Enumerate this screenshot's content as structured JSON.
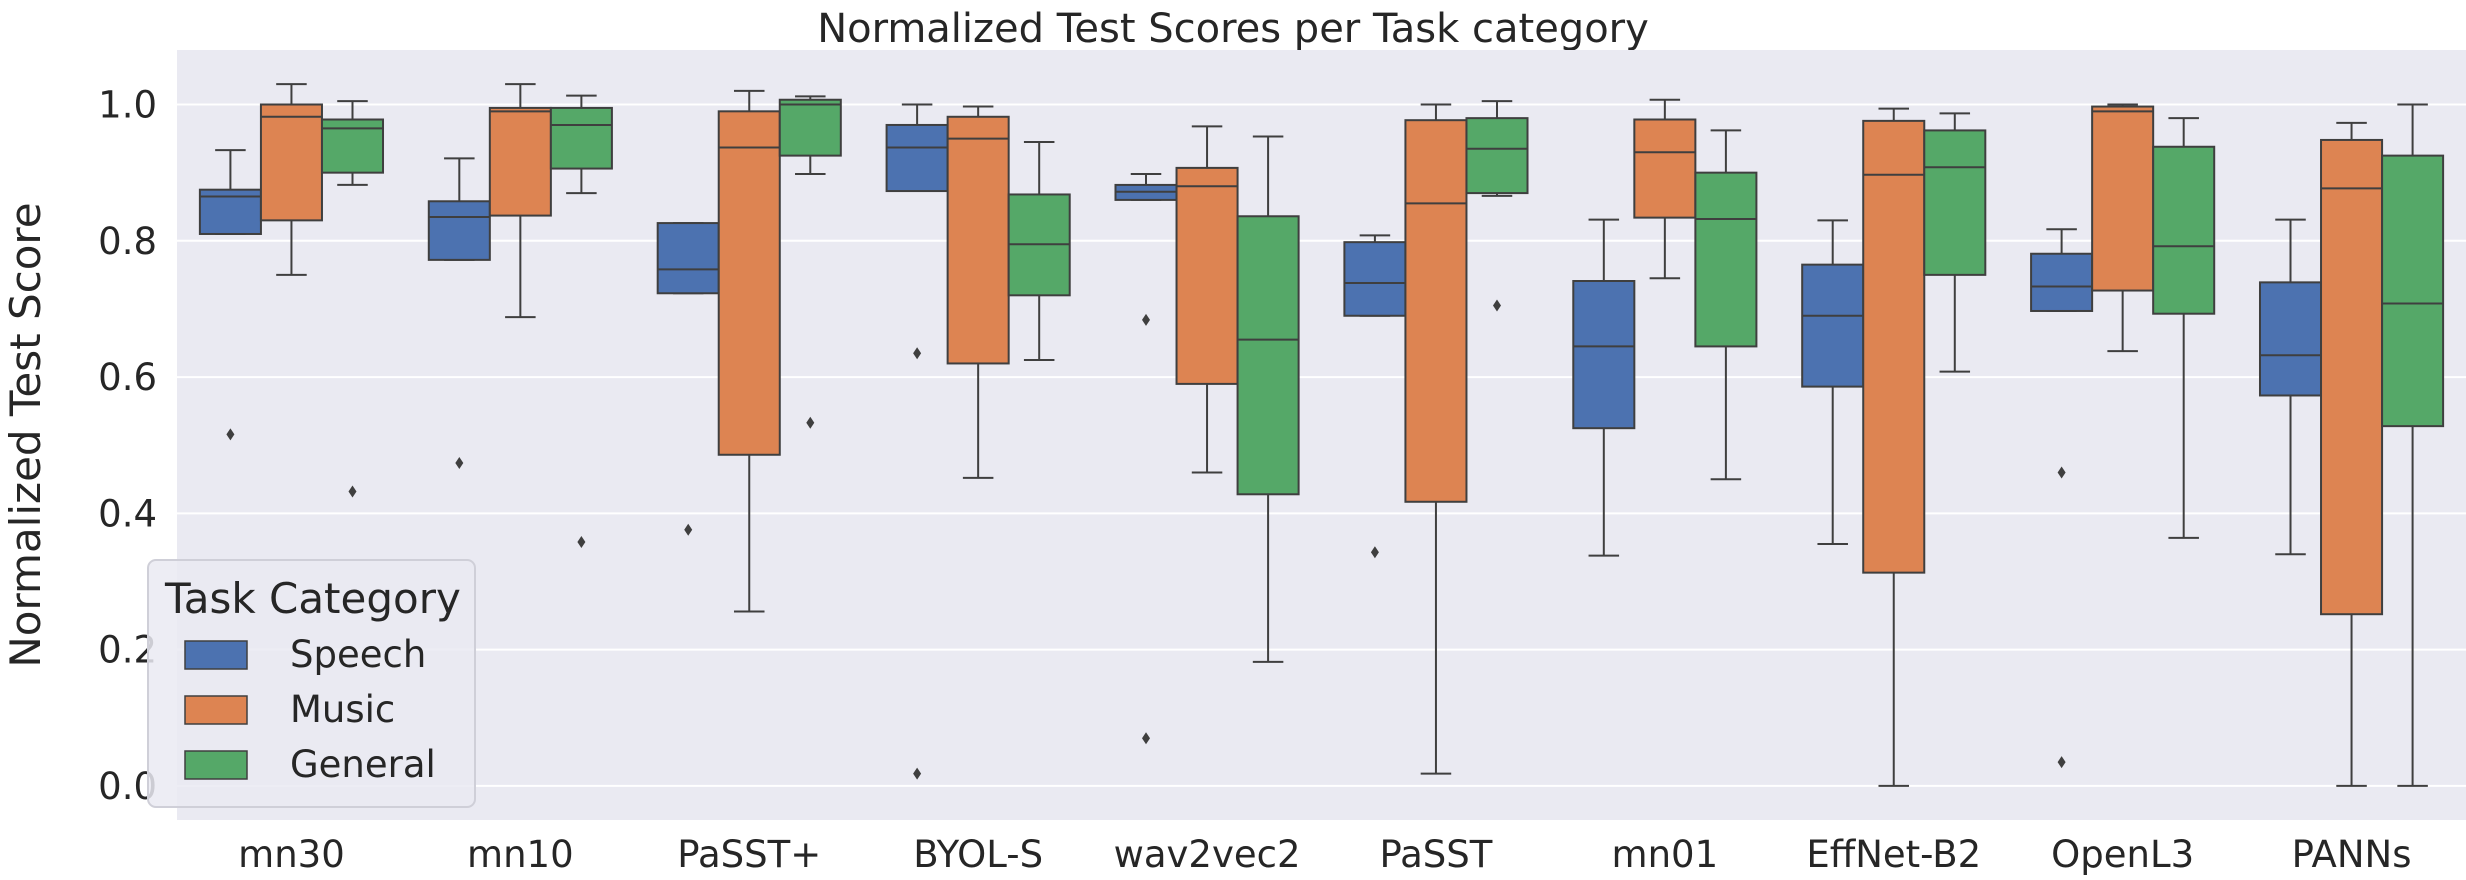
{
  "chart_data": {
    "type": "box",
    "title": "Normalized Test Scores per Task category",
    "xlabel": "",
    "ylabel": "Normalized Test Score",
    "ylim": [
      -0.05,
      1.08
    ],
    "yticks": [
      "0.0",
      "0.2",
      "0.4",
      "0.6",
      "0.8",
      "1.0"
    ],
    "ytick_values": [
      0.0,
      0.2,
      0.4,
      0.6,
      0.8,
      1.0
    ],
    "grid": true,
    "categories": [
      "mn30",
      "mn10",
      "PaSST+",
      "BYOL-S",
      "wav2vec2",
      "PaSST",
      "mn01",
      "EffNet-B2",
      "OpenL3",
      "PANNs"
    ],
    "legend": {
      "title": "Task Category",
      "location": "lower-left",
      "entries": [
        "Speech",
        "Music",
        "General"
      ]
    },
    "colors": {
      "Speech": "#4c72b0",
      "Music": "#dd8452",
      "General": "#55a868",
      "background": "#eaeaf2",
      "grid": "#ffffff",
      "edge": "#3f3f3f"
    },
    "series": [
      {
        "name": "Speech",
        "boxes": [
          {
            "q1": 0.81,
            "median": 0.865,
            "q3": 0.875,
            "whislo": 0.81,
            "whishi": 0.933,
            "fliers": [
              0.516
            ]
          },
          {
            "q1": 0.772,
            "median": 0.835,
            "q3": 0.858,
            "whislo": 0.772,
            "whishi": 0.921,
            "fliers": [
              0.474
            ]
          },
          {
            "q1": 0.723,
            "median": 0.758,
            "q3": 0.826,
            "whislo": 0.723,
            "whishi": 0.826,
            "fliers": [
              0.376
            ]
          },
          {
            "q1": 0.873,
            "median": 0.937,
            "q3": 0.97,
            "whislo": 0.873,
            "whishi": 1.0,
            "fliers": [
              0.635,
              0.018
            ]
          },
          {
            "q1": 0.86,
            "median": 0.872,
            "q3": 0.882,
            "whislo": 0.86,
            "whishi": 0.898,
            "fliers": [
              0.684,
              0.07
            ]
          },
          {
            "q1": 0.69,
            "median": 0.738,
            "q3": 0.798,
            "whislo": 0.69,
            "whishi": 0.808,
            "fliers": [
              0.343
            ]
          },
          {
            "q1": 0.525,
            "median": 0.645,
            "q3": 0.741,
            "whislo": 0.338,
            "whishi": 0.831,
            "fliers": []
          },
          {
            "q1": 0.586,
            "median": 0.69,
            "q3": 0.765,
            "whislo": 0.355,
            "whishi": 0.83,
            "fliers": []
          },
          {
            "q1": 0.697,
            "median": 0.733,
            "q3": 0.781,
            "whislo": 0.697,
            "whishi": 0.817,
            "fliers": [
              0.46,
              0.035
            ]
          },
          {
            "q1": 0.573,
            "median": 0.632,
            "q3": 0.739,
            "whislo": 0.34,
            "whishi": 0.831,
            "fliers": []
          }
        ]
      },
      {
        "name": "Music",
        "boxes": [
          {
            "q1": 0.83,
            "median": 0.982,
            "q3": 1.0,
            "whislo": 0.75,
            "whishi": 1.03,
            "fliers": []
          },
          {
            "q1": 0.837,
            "median": 0.99,
            "q3": 0.995,
            "whislo": 0.688,
            "whishi": 1.03,
            "fliers": []
          },
          {
            "q1": 0.486,
            "median": 0.937,
            "q3": 0.99,
            "whislo": 0.256,
            "whishi": 1.02,
            "fliers": []
          },
          {
            "q1": 0.62,
            "median": 0.95,
            "q3": 0.982,
            "whislo": 0.452,
            "whishi": 0.997,
            "fliers": []
          },
          {
            "q1": 0.59,
            "median": 0.88,
            "q3": 0.907,
            "whislo": 0.46,
            "whishi": 0.968,
            "fliers": []
          },
          {
            "q1": 0.417,
            "median": 0.855,
            "q3": 0.977,
            "whislo": 0.018,
            "whishi": 1.0,
            "fliers": []
          },
          {
            "q1": 0.834,
            "median": 0.93,
            "q3": 0.978,
            "whislo": 0.745,
            "whishi": 1.007,
            "fliers": []
          },
          {
            "q1": 0.313,
            "median": 0.897,
            "q3": 0.976,
            "whislo": 0.0,
            "whishi": 0.994,
            "fliers": []
          },
          {
            "q1": 0.727,
            "median": 0.99,
            "q3": 0.997,
            "whislo": 0.638,
            "whishi": 1.0,
            "fliers": []
          },
          {
            "q1": 0.252,
            "median": 0.877,
            "q3": 0.948,
            "whislo": 0.0,
            "whishi": 0.973,
            "fliers": []
          }
        ]
      },
      {
        "name": "General",
        "boxes": [
          {
            "q1": 0.9,
            "median": 0.965,
            "q3": 0.978,
            "whislo": 0.882,
            "whishi": 1.005,
            "fliers": [
              0.432
            ]
          },
          {
            "q1": 0.906,
            "median": 0.97,
            "q3": 0.995,
            "whislo": 0.87,
            "whishi": 1.013,
            "fliers": [
              0.358
            ]
          },
          {
            "q1": 0.925,
            "median": 1.0,
            "q3": 1.007,
            "whislo": 0.898,
            "whishi": 1.012,
            "fliers": [
              0.533
            ]
          },
          {
            "q1": 0.72,
            "median": 0.795,
            "q3": 0.868,
            "whislo": 0.625,
            "whishi": 0.945,
            "fliers": []
          },
          {
            "q1": 0.428,
            "median": 0.655,
            "q3": 0.836,
            "whislo": 0.182,
            "whishi": 0.953,
            "fliers": []
          },
          {
            "q1": 0.87,
            "median": 0.935,
            "q3": 0.98,
            "whislo": 0.866,
            "whishi": 1.005,
            "fliers": [
              0.705
            ]
          },
          {
            "q1": 0.645,
            "median": 0.832,
            "q3": 0.9,
            "whislo": 0.45,
            "whishi": 0.962,
            "fliers": []
          },
          {
            "q1": 0.75,
            "median": 0.908,
            "q3": 0.962,
            "whislo": 0.608,
            "whishi": 0.987,
            "fliers": []
          },
          {
            "q1": 0.693,
            "median": 0.792,
            "q3": 0.938,
            "whislo": 0.364,
            "whishi": 0.98,
            "fliers": []
          },
          {
            "q1": 0.528,
            "median": 0.708,
            "q3": 0.925,
            "whislo": 0.0,
            "whishi": 1.0,
            "fliers": []
          }
        ]
      }
    ]
  }
}
